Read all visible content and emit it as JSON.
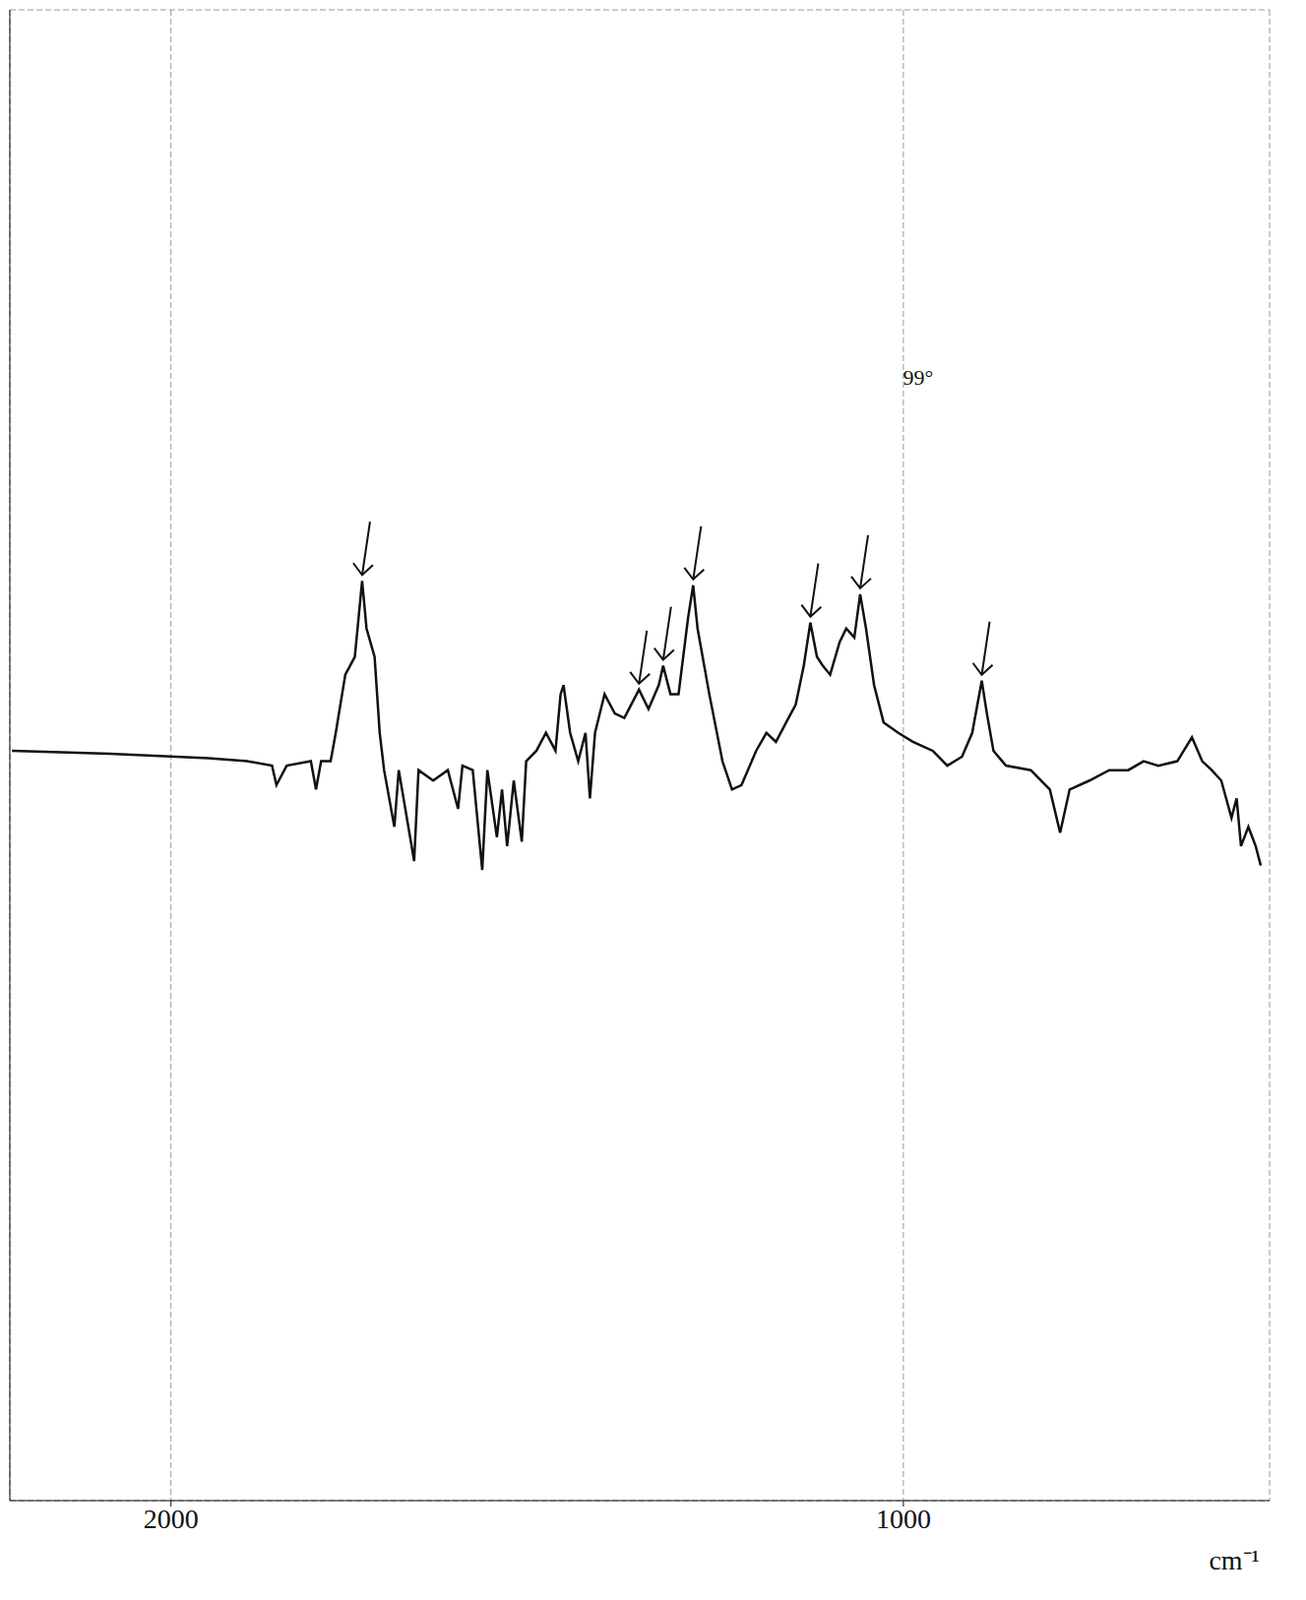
{
  "chart_data": {
    "type": "line",
    "x_label": "cm⁻¹",
    "color": "#111111",
    "grid": true,
    "tick_labels": "x",
    "xlim": [
      2220,
      500
    ],
    "xticks": [
      2000,
      1000
    ],
    "ylim": [
      0,
      100
    ],
    "yticks": [
      0,
      10,
      20,
      30,
      40,
      50,
      60,
      70,
      80,
      90,
      100
    ],
    "x": [
      2217,
      2083,
      1949,
      1896,
      1862,
      1856,
      1842,
      1809,
      1802,
      1795,
      1782,
      1775,
      1762,
      1749,
      1739,
      1733,
      1722,
      1715,
      1709,
      1695,
      1689,
      1668,
      1662,
      1642,
      1622,
      1608,
      1602,
      1588,
      1575,
      1568,
      1555,
      1548,
      1541,
      1532,
      1521,
      1515,
      1501,
      1488,
      1475,
      1468,
      1464,
      1455,
      1444,
      1434,
      1428,
      1421,
      1408,
      1394,
      1381,
      1361,
      1348,
      1334,
      1328,
      1318,
      1307,
      1294,
      1287,
      1281,
      1265,
      1247,
      1234,
      1221,
      1201,
      1187,
      1174,
      1160,
      1147,
      1136,
      1127,
      1118,
      1110,
      1100,
      1087,
      1078,
      1067,
      1059,
      1051,
      1040,
      1027,
      1007,
      987,
      960,
      940,
      920,
      906,
      893,
      886,
      877,
      860,
      826,
      800,
      786,
      773,
      746,
      719,
      693,
      672,
      652,
      626,
      606,
      592,
      579,
      566,
      552,
      545,
      539,
      529,
      519,
      512
    ],
    "values": [
      50.3,
      50.1,
      49.8,
      49.6,
      49.3,
      48.0,
      49.3,
      49.6,
      47.7,
      49.6,
      49.6,
      51.5,
      55.4,
      56.6,
      61.7,
      58.5,
      56.6,
      51.5,
      49.0,
      45.2,
      49.0,
      42.9,
      49.0,
      48.3,
      49.0,
      46.4,
      49.3,
      49.0,
      42.3,
      49.0,
      44.5,
      47.7,
      43.9,
      48.3,
      44.2,
      49.6,
      50.3,
      51.5,
      50.3,
      54.1,
      54.7,
      51.5,
      49.6,
      51.5,
      47.1,
      51.5,
      54.1,
      52.8,
      52.5,
      54.4,
      53.1,
      54.7,
      56.0,
      54.1,
      54.1,
      59.2,
      61.4,
      58.5,
      54.1,
      49.6,
      47.7,
      48.0,
      50.3,
      51.5,
      50.9,
      52.2,
      53.4,
      56.0,
      58.9,
      56.6,
      56.0,
      55.4,
      57.6,
      58.5,
      57.9,
      60.8,
      58.5,
      54.7,
      52.2,
      51.5,
      50.9,
      50.3,
      49.3,
      49.9,
      51.5,
      55.0,
      52.8,
      50.3,
      49.3,
      49.0,
      47.7,
      44.8,
      47.7,
      48.3,
      49.0,
      49.0,
      49.6,
      49.3,
      49.6,
      51.2,
      49.6,
      49.0,
      48.3,
      45.8,
      47.1,
      43.9,
      45.2,
      43.9,
      42.6
    ],
    "arrows": [
      {
        "x": 1739,
        "y": 61.7
      },
      {
        "x": 1361,
        "y": 54.4
      },
      {
        "x": 1328,
        "y": 56.0
      },
      {
        "x": 1287,
        "y": 61.4
      },
      {
        "x": 1127,
        "y": 58.9
      },
      {
        "x": 1059,
        "y": 60.8
      },
      {
        "x": 893,
        "y": 55.0
      }
    ],
    "annotations": [
      {
        "text": "99°",
        "x": 980,
        "y": 75.4
      }
    ]
  }
}
